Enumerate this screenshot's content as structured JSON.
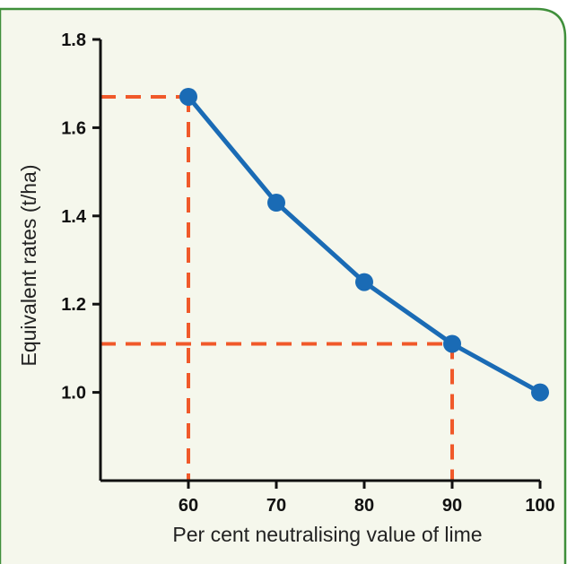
{
  "colors": {
    "panel_background": "#f5f7ec",
    "panel_border": "#3f8f3a",
    "line": "#1a6bb5",
    "guide": "#f0592a",
    "axis": "#111111"
  },
  "chart_data": {
    "type": "line",
    "title": "",
    "xlabel": "Per cent neutralising value of lime",
    "ylabel": "Equivalent rates (t/ha)",
    "xlim": [
      50,
      100
    ],
    "ylim": [
      0.8,
      1.8
    ],
    "x_ticks": [
      60,
      70,
      80,
      90,
      100
    ],
    "y_ticks": [
      1.0,
      1.2,
      1.4,
      1.6,
      1.8
    ],
    "x_tick_labels": [
      "60",
      "70",
      "80",
      "90",
      "100"
    ],
    "y_tick_labels": [
      "1.0",
      "1.2",
      "1.4",
      "1.6",
      "1.8"
    ],
    "grid": false,
    "series": [
      {
        "x": [
          60,
          70,
          80,
          90,
          100
        ],
        "y": [
          1.67,
          1.43,
          1.25,
          1.11,
          1.0
        ]
      }
    ],
    "guides": [
      {
        "x": 60,
        "y": 1.67
      },
      {
        "x": 90,
        "y": 1.11
      }
    ]
  }
}
